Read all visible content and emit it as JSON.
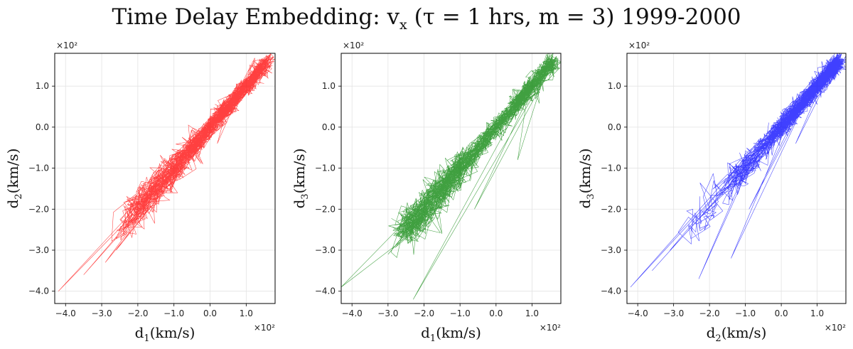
{
  "figure": {
    "title_main": "Time Delay Embedding: v",
    "title_sub": "x",
    "title_rest": " (τ = 1 hrs, m = 3) 1999-2000"
  },
  "chart_data": [
    {
      "type": "line",
      "color": "#ff0000",
      "xlabel": {
        "base": "d",
        "sub": "1",
        "unit": "(km/s)"
      },
      "ylabel": {
        "base": "d",
        "sub": "2",
        "unit": "(km/s)"
      },
      "multiplier": "×10²",
      "xlim": [
        -4.3,
        1.8
      ],
      "ylim": [
        -4.3,
        1.8
      ],
      "xticks": [
        -4.0,
        -3.0,
        -2.0,
        -1.0,
        0.0,
        1.0
      ],
      "yticks": [
        1.0,
        0.0,
        -1.0,
        -2.0,
        -3.0,
        -4.0
      ],
      "xtick_labels": [
        "−4.0",
        "−3.0",
        "−2.0",
        "−1.0",
        "0.0",
        "1.0"
      ],
      "ytick_labels": [
        "1.0",
        "0.0",
        "−1.0",
        "−2.0",
        "−3.0",
        "−4.0"
      ],
      "grid": true,
      "trajectory_outliers": [
        [
          -4.2,
          -4.0
        ],
        [
          -3.5,
          -3.6
        ],
        [
          -2.9,
          -3.3
        ],
        [
          -2.6,
          -3.0
        ],
        [
          -2.4,
          -2.5
        ],
        [
          -1.5,
          -1.2
        ],
        [
          -0.9,
          -1.6
        ],
        [
          -0.2,
          -0.9
        ],
        [
          0.2,
          -0.4
        ],
        [
          1.0,
          1.2
        ],
        [
          1.6,
          1.7
        ]
      ]
    },
    {
      "type": "line",
      "color": "#008000",
      "xlabel": {
        "base": "d",
        "sub": "1",
        "unit": "(km/s)"
      },
      "ylabel": {
        "base": "d",
        "sub": "3",
        "unit": "(km/s)"
      },
      "multiplier": "×10²",
      "xlim": [
        -4.3,
        1.8
      ],
      "ylim": [
        -4.3,
        1.8
      ],
      "xticks": [
        -4.0,
        -3.0,
        -2.0,
        -1.0,
        0.0,
        1.0
      ],
      "yticks": [
        1.0,
        0.0,
        -1.0,
        -2.0,
        -3.0,
        -4.0
      ],
      "xtick_labels": [
        "−4.0",
        "−3.0",
        "−2.0",
        "−1.0",
        "0.0",
        "1.0"
      ],
      "ytick_labels": [
        "1.0",
        "0.0",
        "−1.0",
        "−2.0",
        "−3.0",
        "−4.0"
      ],
      "grid": true,
      "trajectory_outliers": [
        [
          -4.3,
          -3.9
        ],
        [
          -3.0,
          -3.1
        ],
        [
          -2.3,
          -4.2
        ],
        [
          -1.5,
          -2.6
        ],
        [
          -0.6,
          -2.0
        ],
        [
          0.6,
          -0.8
        ],
        [
          1.6,
          1.6
        ]
      ]
    },
    {
      "type": "line",
      "color": "#0000ff",
      "xlabel": {
        "base": "d",
        "sub": "2",
        "unit": "(km/s)"
      },
      "ylabel": {
        "base": "d",
        "sub": "3",
        "unit": "(km/s)"
      },
      "multiplier": "×10²",
      "xlim": [
        -4.3,
        1.8
      ],
      "ylim": [
        -4.3,
        1.8
      ],
      "xticks": [
        -4.0,
        -3.0,
        -2.0,
        -1.0,
        0.0,
        1.0
      ],
      "yticks": [
        1.0,
        0.0,
        -1.0,
        -2.0,
        -3.0,
        -4.0
      ],
      "xtick_labels": [
        "−4.0",
        "−3.0",
        "−2.0",
        "−1.0",
        "0.0",
        "1.0"
      ],
      "ytick_labels": [
        "1.0",
        "0.0",
        "−1.0",
        "−2.0",
        "−3.0",
        "−4.0"
      ],
      "grid": true,
      "trajectory_outliers": [
        [
          -4.2,
          -3.9
        ],
        [
          -3.6,
          -3.5
        ],
        [
          -3.1,
          -3.0
        ],
        [
          -2.3,
          -3.7
        ],
        [
          -1.4,
          -3.2
        ],
        [
          -0.9,
          -2.0
        ],
        [
          0.4,
          -0.4
        ],
        [
          1.6,
          1.7
        ]
      ]
    }
  ]
}
